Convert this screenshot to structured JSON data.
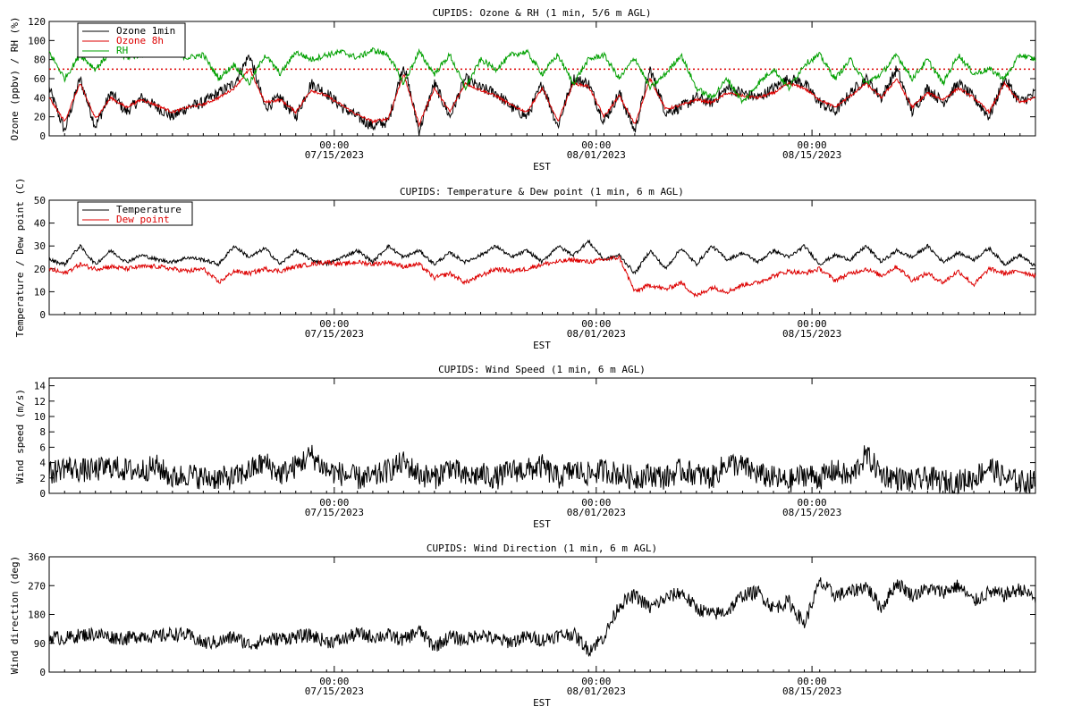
{
  "x_axis": {
    "label": "EST",
    "span_days": 64,
    "start_offset_days": 0,
    "ticks": [
      {
        "time": "00:00",
        "date": "07/15/2023",
        "day": 18.5
      },
      {
        "time": "00:00",
        "date": "08/01/2023",
        "day": 35.5
      },
      {
        "time": "00:00",
        "date": "08/15/2023",
        "day": 49.5
      }
    ]
  },
  "chart_data": [
    {
      "type": "line",
      "title": "CUPIDS: Ozone & RH (1 min, 5/6 m AGL)",
      "xlabel": "EST",
      "ylabel": "Ozone (ppbv) / RH (%)",
      "ylim": [
        0,
        120
      ],
      "yticks": [
        0,
        20,
        40,
        60,
        80,
        100,
        120
      ],
      "legend_position": "top-left",
      "reference_line": {
        "y": 70,
        "color": "#dd0000",
        "style": "dotted"
      },
      "series": [
        {
          "name": "Ozone 1min",
          "color": "#000000",
          "noise": 6,
          "clip": true,
          "x": [
            0,
            1,
            2,
            3,
            4,
            5,
            6,
            7,
            8,
            9,
            10,
            11,
            12,
            13,
            14,
            15,
            16,
            17,
            18,
            19,
            20,
            21,
            22,
            23,
            24,
            25,
            26,
            27,
            28,
            29,
            30,
            31,
            32,
            33,
            34,
            35,
            36,
            37,
            38,
            39,
            40,
            41,
            42,
            43,
            44,
            45,
            46,
            47,
            48,
            49,
            50,
            51,
            52,
            53,
            54,
            55,
            56,
            57,
            58,
            59,
            60,
            61,
            62,
            63,
            64
          ],
          "y": [
            50,
            5,
            60,
            10,
            45,
            25,
            40,
            30,
            20,
            30,
            35,
            45,
            55,
            85,
            30,
            40,
            20,
            55,
            45,
            30,
            20,
            10,
            15,
            75,
            5,
            55,
            20,
            60,
            50,
            45,
            30,
            20,
            55,
            10,
            60,
            55,
            15,
            45,
            5,
            70,
            25,
            30,
            40,
            35,
            50,
            45,
            40,
            50,
            60,
            55,
            35,
            25,
            45,
            60,
            40,
            70,
            25,
            50,
            35,
            55,
            40,
            20,
            60,
            35,
            45
          ]
        },
        {
          "name": "Ozone 8h",
          "color": "#dd0000",
          "noise": 1.5,
          "clip": false,
          "x": [
            0,
            1,
            2,
            3,
            4,
            5,
            6,
            7,
            8,
            9,
            10,
            11,
            12,
            13,
            14,
            15,
            16,
            17,
            18,
            19,
            20,
            21,
            22,
            23,
            24,
            25,
            26,
            27,
            28,
            29,
            30,
            31,
            32,
            33,
            34,
            35,
            36,
            37,
            38,
            39,
            40,
            41,
            42,
            43,
            44,
            45,
            46,
            47,
            48,
            49,
            50,
            51,
            52,
            53,
            54,
            55,
            56,
            57,
            58,
            59,
            60,
            61,
            62,
            63,
            64
          ],
          "y": [
            40,
            15,
            55,
            18,
            40,
            30,
            38,
            32,
            25,
            30,
            33,
            40,
            50,
            70,
            35,
            38,
            25,
            48,
            42,
            32,
            22,
            15,
            18,
            65,
            12,
            50,
            25,
            55,
            48,
            42,
            32,
            25,
            50,
            15,
            55,
            52,
            20,
            42,
            12,
            60,
            28,
            32,
            38,
            35,
            45,
            42,
            40,
            45,
            55,
            50,
            38,
            30,
            42,
            55,
            40,
            60,
            30,
            45,
            38,
            50,
            40,
            25,
            55,
            35,
            40
          ]
        },
        {
          "name": "RH",
          "color": "#00a000",
          "noise": 3,
          "clip": true,
          "x": [
            0,
            1,
            2,
            3,
            4,
            5,
            6,
            7,
            8,
            9,
            10,
            11,
            12,
            13,
            14,
            15,
            16,
            17,
            18,
            19,
            20,
            21,
            22,
            23,
            24,
            25,
            26,
            27,
            28,
            29,
            30,
            31,
            32,
            33,
            34,
            35,
            36,
            37,
            38,
            39,
            40,
            41,
            42,
            43,
            44,
            45,
            46,
            47,
            48,
            49,
            50,
            51,
            52,
            53,
            54,
            55,
            56,
            57,
            58,
            59,
            60,
            61,
            62,
            63,
            64
          ],
          "y": [
            88,
            60,
            85,
            70,
            88,
            82,
            85,
            88,
            86,
            82,
            85,
            60,
            75,
            55,
            85,
            65,
            88,
            80,
            85,
            88,
            82,
            90,
            85,
            55,
            88,
            65,
            85,
            50,
            80,
            70,
            85,
            88,
            65,
            85,
            55,
            80,
            85,
            60,
            82,
            50,
            65,
            85,
            50,
            40,
            60,
            35,
            55,
            70,
            50,
            75,
            85,
            60,
            80,
            55,
            65,
            85,
            60,
            80,
            55,
            85,
            65,
            70,
            60,
            85,
            80
          ]
        }
      ]
    },
    {
      "type": "line",
      "title": "CUPIDS: Temperature & Dew point (1 min, 6 m AGL)",
      "xlabel": "EST",
      "ylabel": "Temperature / Dew point (C)",
      "ylim": [
        0,
        50
      ],
      "yticks": [
        0,
        10,
        20,
        30,
        40,
        50
      ],
      "legend_position": "top-left",
      "series": [
        {
          "name": "Temperature",
          "color": "#000000",
          "noise": 0.8,
          "clip": false,
          "x": [
            0,
            1,
            2,
            3,
            4,
            5,
            6,
            7,
            8,
            9,
            10,
            11,
            12,
            13,
            14,
            15,
            16,
            17,
            18,
            19,
            20,
            21,
            22,
            23,
            24,
            25,
            26,
            27,
            28,
            29,
            30,
            31,
            32,
            33,
            34,
            35,
            36,
            37,
            38,
            39,
            40,
            41,
            42,
            43,
            44,
            45,
            46,
            47,
            48,
            49,
            50,
            51,
            52,
            53,
            54,
            55,
            56,
            57,
            58,
            59,
            60,
            61,
            62,
            63,
            64
          ],
          "y": [
            24,
            22,
            30,
            22,
            28,
            23,
            26,
            24,
            23,
            25,
            24,
            22,
            30,
            25,
            29,
            22,
            28,
            24,
            22,
            25,
            28,
            23,
            30,
            25,
            28,
            22,
            27,
            23,
            26,
            30,
            25,
            28,
            23,
            30,
            26,
            32,
            24,
            26,
            18,
            28,
            20,
            29,
            22,
            30,
            24,
            27,
            23,
            28,
            25,
            30,
            22,
            26,
            24,
            30,
            23,
            28,
            25,
            30,
            23,
            27,
            24,
            29,
            22,
            26,
            21
          ]
        },
        {
          "name": "Dew point",
          "color": "#dd0000",
          "noise": 1.0,
          "clip": false,
          "x": [
            0,
            1,
            2,
            3,
            4,
            5,
            6,
            7,
            8,
            9,
            10,
            11,
            12,
            13,
            14,
            15,
            16,
            17,
            18,
            19,
            20,
            21,
            22,
            23,
            24,
            25,
            26,
            27,
            28,
            29,
            30,
            31,
            32,
            33,
            34,
            35,
            36,
            37,
            38,
            39,
            40,
            41,
            42,
            43,
            44,
            45,
            46,
            47,
            48,
            49,
            50,
            51,
            52,
            53,
            54,
            55,
            56,
            57,
            58,
            59,
            60,
            61,
            62,
            63,
            64
          ],
          "y": [
            20,
            18,
            22,
            20,
            21,
            20,
            21,
            21,
            20,
            19,
            20,
            14,
            19,
            18,
            20,
            19,
            21,
            22,
            23,
            22,
            23,
            22,
            23,
            21,
            22,
            16,
            18,
            14,
            17,
            20,
            19,
            20,
            22,
            23,
            24,
            23,
            24,
            25,
            10,
            13,
            11,
            14,
            8,
            12,
            10,
            13,
            14,
            17,
            19,
            18,
            20,
            15,
            18,
            20,
            17,
            21,
            15,
            18,
            14,
            19,
            13,
            20,
            18,
            19,
            17
          ]
        }
      ]
    },
    {
      "type": "line",
      "title": "CUPIDS: Wind Speed (1 min, 6 m AGL)",
      "xlabel": "EST",
      "ylabel": "Wind speed (m/s)",
      "ylim": [
        0,
        15
      ],
      "yticks": [
        0,
        2,
        4,
        6,
        8,
        10,
        12,
        14
      ],
      "series": [
        {
          "name": "",
          "color": "#000000",
          "noise": 1.6,
          "clip": true,
          "x": [
            0,
            1,
            2,
            3,
            4,
            5,
            6,
            7,
            8,
            9,
            10,
            11,
            12,
            13,
            14,
            15,
            16,
            17,
            18,
            19,
            20,
            21,
            22,
            23,
            24,
            25,
            26,
            27,
            28,
            29,
            30,
            31,
            32,
            33,
            34,
            35,
            36,
            37,
            38,
            39,
            40,
            41,
            42,
            43,
            44,
            45,
            46,
            47,
            48,
            49,
            50,
            51,
            52,
            53,
            54,
            55,
            56,
            57,
            58,
            59,
            60,
            61,
            62,
            63,
            64
          ],
          "y": [
            2.5,
            3.5,
            3,
            3,
            3.5,
            3,
            3,
            3.5,
            2,
            2.5,
            2,
            2,
            2,
            3,
            4,
            2.5,
            3.5,
            5,
            3,
            2.5,
            2,
            2,
            3,
            4,
            2.5,
            2,
            3.5,
            2,
            2.5,
            2,
            3,
            3,
            3.5,
            2,
            3,
            2.5,
            3,
            2.5,
            2,
            2.5,
            2,
            3,
            2.5,
            2,
            4,
            3.5,
            2.5,
            2,
            1.5,
            2.5,
            2,
            3,
            2,
            5,
            2.5,
            2,
            1.5,
            2,
            1.5,
            1.5,
            2,
            3.5,
            2,
            1.5,
            1.5
          ]
        }
      ]
    },
    {
      "type": "line",
      "title": "CUPIDS: Wind Direction (1 min, 6 m AGL)",
      "xlabel": "EST",
      "ylabel": "Wind direction (deg)",
      "ylim": [
        0,
        360
      ],
      "yticks": [
        0,
        90,
        180,
        270,
        360
      ],
      "series": [
        {
          "name": "",
          "color": "#000000",
          "noise": 22,
          "clip": true,
          "x": [
            0,
            1,
            2,
            3,
            4,
            5,
            6,
            7,
            8,
            9,
            10,
            11,
            12,
            13,
            14,
            15,
            16,
            17,
            18,
            19,
            20,
            21,
            22,
            23,
            24,
            25,
            26,
            27,
            28,
            29,
            30,
            31,
            32,
            33,
            34,
            35,
            36,
            37,
            38,
            39,
            40,
            41,
            42,
            43,
            44,
            45,
            46,
            47,
            48,
            49,
            50,
            51,
            52,
            53,
            54,
            55,
            56,
            57,
            58,
            59,
            60,
            61,
            62,
            63,
            64
          ],
          "y": [
            110,
            105,
            115,
            120,
            110,
            105,
            115,
            110,
            120,
            115,
            90,
            95,
            110,
            85,
            100,
            105,
            110,
            115,
            95,
            100,
            120,
            110,
            115,
            100,
            130,
            80,
            110,
            100,
            120,
            100,
            95,
            110,
            100,
            115,
            120,
            70,
            110,
            210,
            240,
            200,
            230,
            250,
            200,
            180,
            190,
            240,
            250,
            200,
            220,
            150,
            280,
            240,
            250,
            270,
            200,
            280,
            240,
            260,
            250,
            270,
            220,
            250,
            240,
            260,
            230
          ]
        }
      ]
    }
  ]
}
